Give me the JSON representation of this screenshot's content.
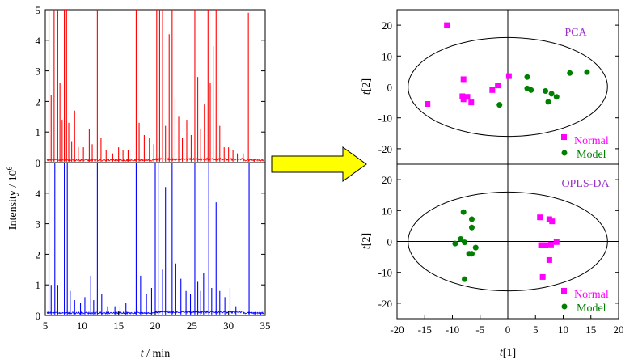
{
  "chart_data": [
    {
      "type": "line",
      "panel": "chromatogram-top",
      "series": [
        {
          "color": "#ff0000"
        }
      ],
      "ylim": [
        0,
        5
      ],
      "yticks": [
        "0",
        "1",
        "2",
        "3",
        "4",
        "5"
      ],
      "peaks_min": [
        [
          5.5,
          5.0
        ],
        [
          5.8,
          2.2
        ],
        [
          6.2,
          5.0
        ],
        [
          6.7,
          5.0
        ],
        [
          7.0,
          2.6
        ],
        [
          7.3,
          1.4
        ],
        [
          7.6,
          5.0
        ],
        [
          7.9,
          5.0
        ],
        [
          8.2,
          1.3
        ],
        [
          8.6,
          0.7
        ],
        [
          9.0,
          1.7
        ],
        [
          9.5,
          0.5
        ],
        [
          10.2,
          0.5
        ],
        [
          11.0,
          1.1
        ],
        [
          11.4,
          0.6
        ],
        [
          12.1,
          5.0
        ],
        [
          12.6,
          0.8
        ],
        [
          13.3,
          0.4
        ],
        [
          14.2,
          0.3
        ],
        [
          15.0,
          0.5
        ],
        [
          15.6,
          0.4
        ],
        [
          16.3,
          0.4
        ],
        [
          17.4,
          5.0
        ],
        [
          17.8,
          1.3
        ],
        [
          18.5,
          0.9
        ],
        [
          19.2,
          0.8
        ],
        [
          19.8,
          0.6
        ],
        [
          20.2,
          5.0
        ],
        [
          20.6,
          5.0
        ],
        [
          21.0,
          5.0
        ],
        [
          21.4,
          1.2
        ],
        [
          21.9,
          4.2
        ],
        [
          22.3,
          5.0
        ],
        [
          22.7,
          2.1
        ],
        [
          23.2,
          1.5
        ],
        [
          23.7,
          0.8
        ],
        [
          24.3,
          1.4
        ],
        [
          24.9,
          0.9
        ],
        [
          25.4,
          5.0
        ],
        [
          25.8,
          2.8
        ],
        [
          26.2,
          1.1
        ],
        [
          26.7,
          1.9
        ],
        [
          27.2,
          5.0
        ],
        [
          27.5,
          2.6
        ],
        [
          27.9,
          3.8
        ],
        [
          28.3,
          5.0
        ],
        [
          28.8,
          1.2
        ],
        [
          29.4,
          0.5
        ],
        [
          30.0,
          0.5
        ],
        [
          30.6,
          0.4
        ],
        [
          31.2,
          0.3
        ],
        [
          32.0,
          0.3
        ],
        [
          32.7,
          4.9
        ],
        [
          33.5,
          0.1
        ],
        [
          34.3,
          0.1
        ]
      ]
    },
    {
      "type": "line",
      "panel": "chromatogram-bottom",
      "series": [
        {
          "color": "#0000ff"
        }
      ],
      "ylim": [
        0,
        5
      ],
      "yticks": [
        "0",
        "1",
        "2",
        "3",
        "4"
      ],
      "xlim": [
        5,
        35
      ],
      "xticks": [
        "5",
        "10",
        "15",
        "20",
        "25",
        "30",
        "35"
      ],
      "xlabel_var": "t",
      "xlabel_unit": " / min",
      "ylabel": "Intensity / 10",
      "ylabel_exp": "6",
      "peaks_min": [
        [
          5.5,
          5.0
        ],
        [
          5.8,
          1.0
        ],
        [
          6.3,
          5.0
        ],
        [
          6.7,
          1.0
        ],
        [
          7.6,
          5.0
        ],
        [
          8.0,
          5.0
        ],
        [
          8.4,
          0.8
        ],
        [
          9.0,
          0.5
        ],
        [
          9.8,
          0.4
        ],
        [
          10.4,
          0.6
        ],
        [
          11.2,
          1.3
        ],
        [
          11.6,
          0.5
        ],
        [
          12.1,
          5.0
        ],
        [
          12.7,
          0.7
        ],
        [
          13.5,
          0.3
        ],
        [
          14.5,
          0.3
        ],
        [
          15.2,
          0.3
        ],
        [
          16.0,
          0.4
        ],
        [
          17.4,
          5.0
        ],
        [
          18.0,
          1.3
        ],
        [
          18.8,
          0.7
        ],
        [
          19.5,
          0.9
        ],
        [
          20.0,
          5.0
        ],
        [
          20.4,
          5.0
        ],
        [
          21.0,
          1.5
        ],
        [
          21.4,
          4.2
        ],
        [
          22.3,
          5.0
        ],
        [
          22.8,
          1.7
        ],
        [
          23.5,
          1.2
        ],
        [
          24.2,
          0.8
        ],
        [
          24.8,
          0.7
        ],
        [
          25.4,
          5.0
        ],
        [
          25.8,
          1.1
        ],
        [
          26.2,
          0.8
        ],
        [
          26.6,
          1.4
        ],
        [
          27.3,
          5.0
        ],
        [
          27.7,
          0.9
        ],
        [
          28.3,
          3.7
        ],
        [
          28.8,
          0.8
        ],
        [
          29.5,
          0.6
        ],
        [
          30.2,
          0.9
        ],
        [
          31.0,
          0.3
        ],
        [
          32.8,
          5.0
        ],
        [
          33.6,
          0.1
        ],
        [
          34.4,
          0.1
        ]
      ]
    },
    {
      "type": "scatter",
      "panel": "pca",
      "title": "PCA",
      "xlim": [
        -20,
        20
      ],
      "ylim": [
        -25,
        25
      ],
      "yticks": [
        "20",
        "10",
        "0",
        "-10",
        "-20"
      ],
      "ylabel_var": "t",
      "ylabel_idx": "[2]",
      "ellipse": {
        "rx": 18,
        "ry": 16
      },
      "series": [
        {
          "name": "Normal",
          "marker": "square",
          "color": "#ff00ff",
          "points": [
            [
              -11,
              20
            ],
            [
              -14.5,
              -5.5
            ],
            [
              -8,
              2.5
            ],
            [
              -8.2,
              -3
            ],
            [
              -8,
              -4
            ],
            [
              -7.3,
              -3.2
            ],
            [
              -6.6,
              -5
            ],
            [
              -2.8,
              -1
            ],
            [
              -1.8,
              0.5
            ],
            [
              0.2,
              3.5
            ]
          ]
        },
        {
          "name": "Model",
          "marker": "circle",
          "color": "#008000",
          "points": [
            [
              -1.5,
              -5.8
            ],
            [
              3.5,
              3.2
            ],
            [
              3.5,
              -0.5
            ],
            [
              4.2,
              -1
            ],
            [
              6.8,
              -1.3
            ],
            [
              7.3,
              -4.8
            ],
            [
              7.9,
              -2.2
            ],
            [
              8.8,
              -3.2
            ],
            [
              11.2,
              4.5
            ],
            [
              14.3,
              4.8
            ]
          ]
        }
      ]
    },
    {
      "type": "scatter",
      "panel": "opls-da",
      "title": "OPLS-DA",
      "xlim": [
        -20,
        20
      ],
      "ylim": [
        -25,
        25
      ],
      "xticks": [
        "-20",
        "-15",
        "-10",
        "-5",
        "0",
        "5",
        "10",
        "15",
        "20"
      ],
      "yticks": [
        "20",
        "10",
        "0",
        "-10",
        "-20"
      ],
      "xlabel_var": "t",
      "xlabel_idx": "[1]",
      "ylabel_var": "t",
      "ylabel_idx": "[2]",
      "ellipse": {
        "rx": 18,
        "ry": 16
      },
      "series": [
        {
          "name": "Normal",
          "marker": "square",
          "color": "#ff00ff",
          "points": [
            [
              5.8,
              7.8
            ],
            [
              7.5,
              7.2
            ],
            [
              8.0,
              6.5
            ],
            [
              6.0,
              -1.2
            ],
            [
              6.8,
              -1.2
            ],
            [
              7.8,
              -1.0
            ],
            [
              8.8,
              -0.2
            ],
            [
              7.5,
              -6
            ],
            [
              6.3,
              -11.5
            ]
          ]
        },
        {
          "name": "Model",
          "marker": "circle",
          "color": "#008000",
          "points": [
            [
              -8.0,
              9.5
            ],
            [
              -6.5,
              7.2
            ],
            [
              -6.5,
              4.5
            ],
            [
              -8.5,
              0.8
            ],
            [
              -9.5,
              -0.7
            ],
            [
              -7.8,
              -0.3
            ],
            [
              -5.8,
              -2
            ],
            [
              -7,
              -4
            ],
            [
              -6.5,
              -4
            ],
            [
              -7.8,
              -12.2
            ]
          ]
        }
      ]
    }
  ],
  "legend": {
    "normal_label": "Normal",
    "model_label": "Model"
  },
  "arrow": {
    "color": "#ffff00"
  }
}
